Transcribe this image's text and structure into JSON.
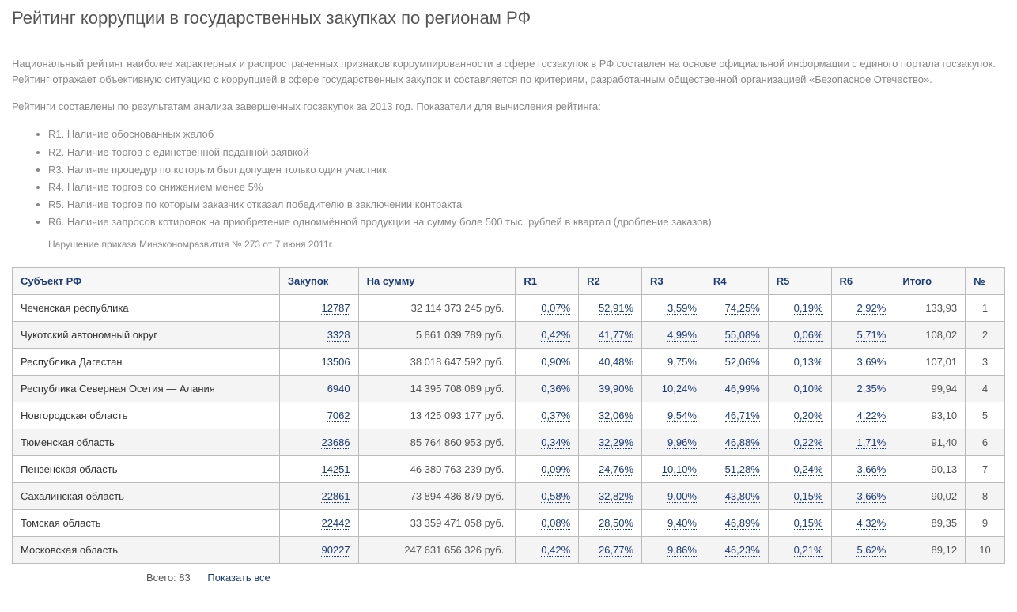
{
  "title": "Рейтинг коррупции в государственных закупках по регионам РФ",
  "intro": {
    "p1": "Национальный рейтинг наиболее характерных и распространенных признаков коррумпированности в сфере госзакупок в РФ составлен на основе официальной информации с единого портала госзакупок. Рейтинг отражает объективную ситуацию с коррупцией в сфере государственных закупок и составляется по критериям, разработанным общественной организацией «Безопасное Отечество».",
    "p2": "Рейтинги составлены по результатам анализа завершенных госзакупок за 2013 год. Показатели для вычисления рейтинга:",
    "bullets": [
      "R1. Наличие обоснованных жалоб",
      "R2. Наличие торгов с единственной поданной заявкой",
      "R3. Наличие процедур по которым был допущен только один участник",
      "R4. Наличие торгов со снижением менее 5%",
      "R5. Наличие торгов по которым заказчик отказал победителю в заключении контракта",
      "R6. Наличие запросов котировок на приобретение одноимённой продукции на сумму боле 500 тыс. рублей в квартал (дробление заказов)."
    ],
    "footnote": "Нарушение приказа Минэкономразвития № 273 от 7 июня 2011г."
  },
  "table": {
    "headers": {
      "region": "Субъект РФ",
      "zakup": "Закупок",
      "sum": "На сумму",
      "r1": "R1",
      "r2": "R2",
      "r3": "R3",
      "r4": "R4",
      "r5": "R5",
      "r6": "R6",
      "total": "Итого",
      "rank": "№"
    },
    "rows": [
      {
        "region": "Чеченская республика",
        "zakup": "12787",
        "sum": "32 114 373 245 руб.",
        "r1": "0,07%",
        "r2": "52,91%",
        "r3": "3,59%",
        "r4": "74,25%",
        "r5": "0,19%",
        "r6": "2,92%",
        "total": "133,93",
        "rank": "1"
      },
      {
        "region": "Чукотский автономный округ",
        "zakup": "3328",
        "sum": "5 861 039 789 руб.",
        "r1": "0,42%",
        "r2": "41,77%",
        "r3": "4,99%",
        "r4": "55,08%",
        "r5": "0,06%",
        "r6": "5,71%",
        "total": "108,02",
        "rank": "2"
      },
      {
        "region": "Республика Дагестан",
        "zakup": "13506",
        "sum": "38 018 647 592 руб.",
        "r1": "0,90%",
        "r2": "40,48%",
        "r3": "9,75%",
        "r4": "52,06%",
        "r5": "0,13%",
        "r6": "3,69%",
        "total": "107,01",
        "rank": "3"
      },
      {
        "region": "Республика Северная Осетия — Алания",
        "zakup": "6940",
        "sum": "14 395 708 089 руб.",
        "r1": "0,36%",
        "r2": "39,90%",
        "r3": "10,24%",
        "r4": "46,99%",
        "r5": "0,10%",
        "r6": "2,35%",
        "total": "99,94",
        "rank": "4"
      },
      {
        "region": "Новгородская область",
        "zakup": "7062",
        "sum": "13 425 093 177 руб.",
        "r1": "0,37%",
        "r2": "32,06%",
        "r3": "9,54%",
        "r4": "46,71%",
        "r5": "0,20%",
        "r6": "4,22%",
        "total": "93,10",
        "rank": "5"
      },
      {
        "region": "Тюменская область",
        "zakup": "23686",
        "sum": "85 764 860 953 руб.",
        "r1": "0,34%",
        "r2": "32,29%",
        "r3": "9,96%",
        "r4": "46,88%",
        "r5": "0,22%",
        "r6": "1,71%",
        "total": "91,40",
        "rank": "6"
      },
      {
        "region": "Пензенская область",
        "zakup": "14251",
        "sum": "46 380 763 239 руб.",
        "r1": "0,09%",
        "r2": "24,76%",
        "r3": "10,10%",
        "r4": "51,28%",
        "r5": "0,24%",
        "r6": "3,66%",
        "total": "90,13",
        "rank": "7"
      },
      {
        "region": "Сахалинская область",
        "zakup": "22861",
        "sum": "73 894 436 879 руб.",
        "r1": "0,58%",
        "r2": "32,82%",
        "r3": "9,00%",
        "r4": "43,80%",
        "r5": "0,15%",
        "r6": "3,66%",
        "total": "90,02",
        "rank": "8"
      },
      {
        "region": "Томская область",
        "zakup": "22442",
        "sum": "33 359 471 058 руб.",
        "r1": "0,08%",
        "r2": "28,50%",
        "r3": "9,40%",
        "r4": "46,89%",
        "r5": "0,15%",
        "r6": "4,32%",
        "total": "89,35",
        "rank": "9"
      },
      {
        "region": "Московская область",
        "zakup": "90227",
        "sum": "247 631 656 326 руб.",
        "r1": "0,42%",
        "r2": "26,77%",
        "r3": "9,86%",
        "r4": "46,23%",
        "r5": "0,21%",
        "r6": "5,62%",
        "total": "89,12",
        "rank": "10"
      }
    ]
  },
  "footer": {
    "total_label": "Всего: 83",
    "showall": "Показать все"
  },
  "colors": {
    "link": "#1a3a7a",
    "text": "#666666",
    "muted": "#888888",
    "border": "#bbbbbb",
    "row_alt": "#f4f4f4",
    "header_bg": "#f7f7f7"
  }
}
